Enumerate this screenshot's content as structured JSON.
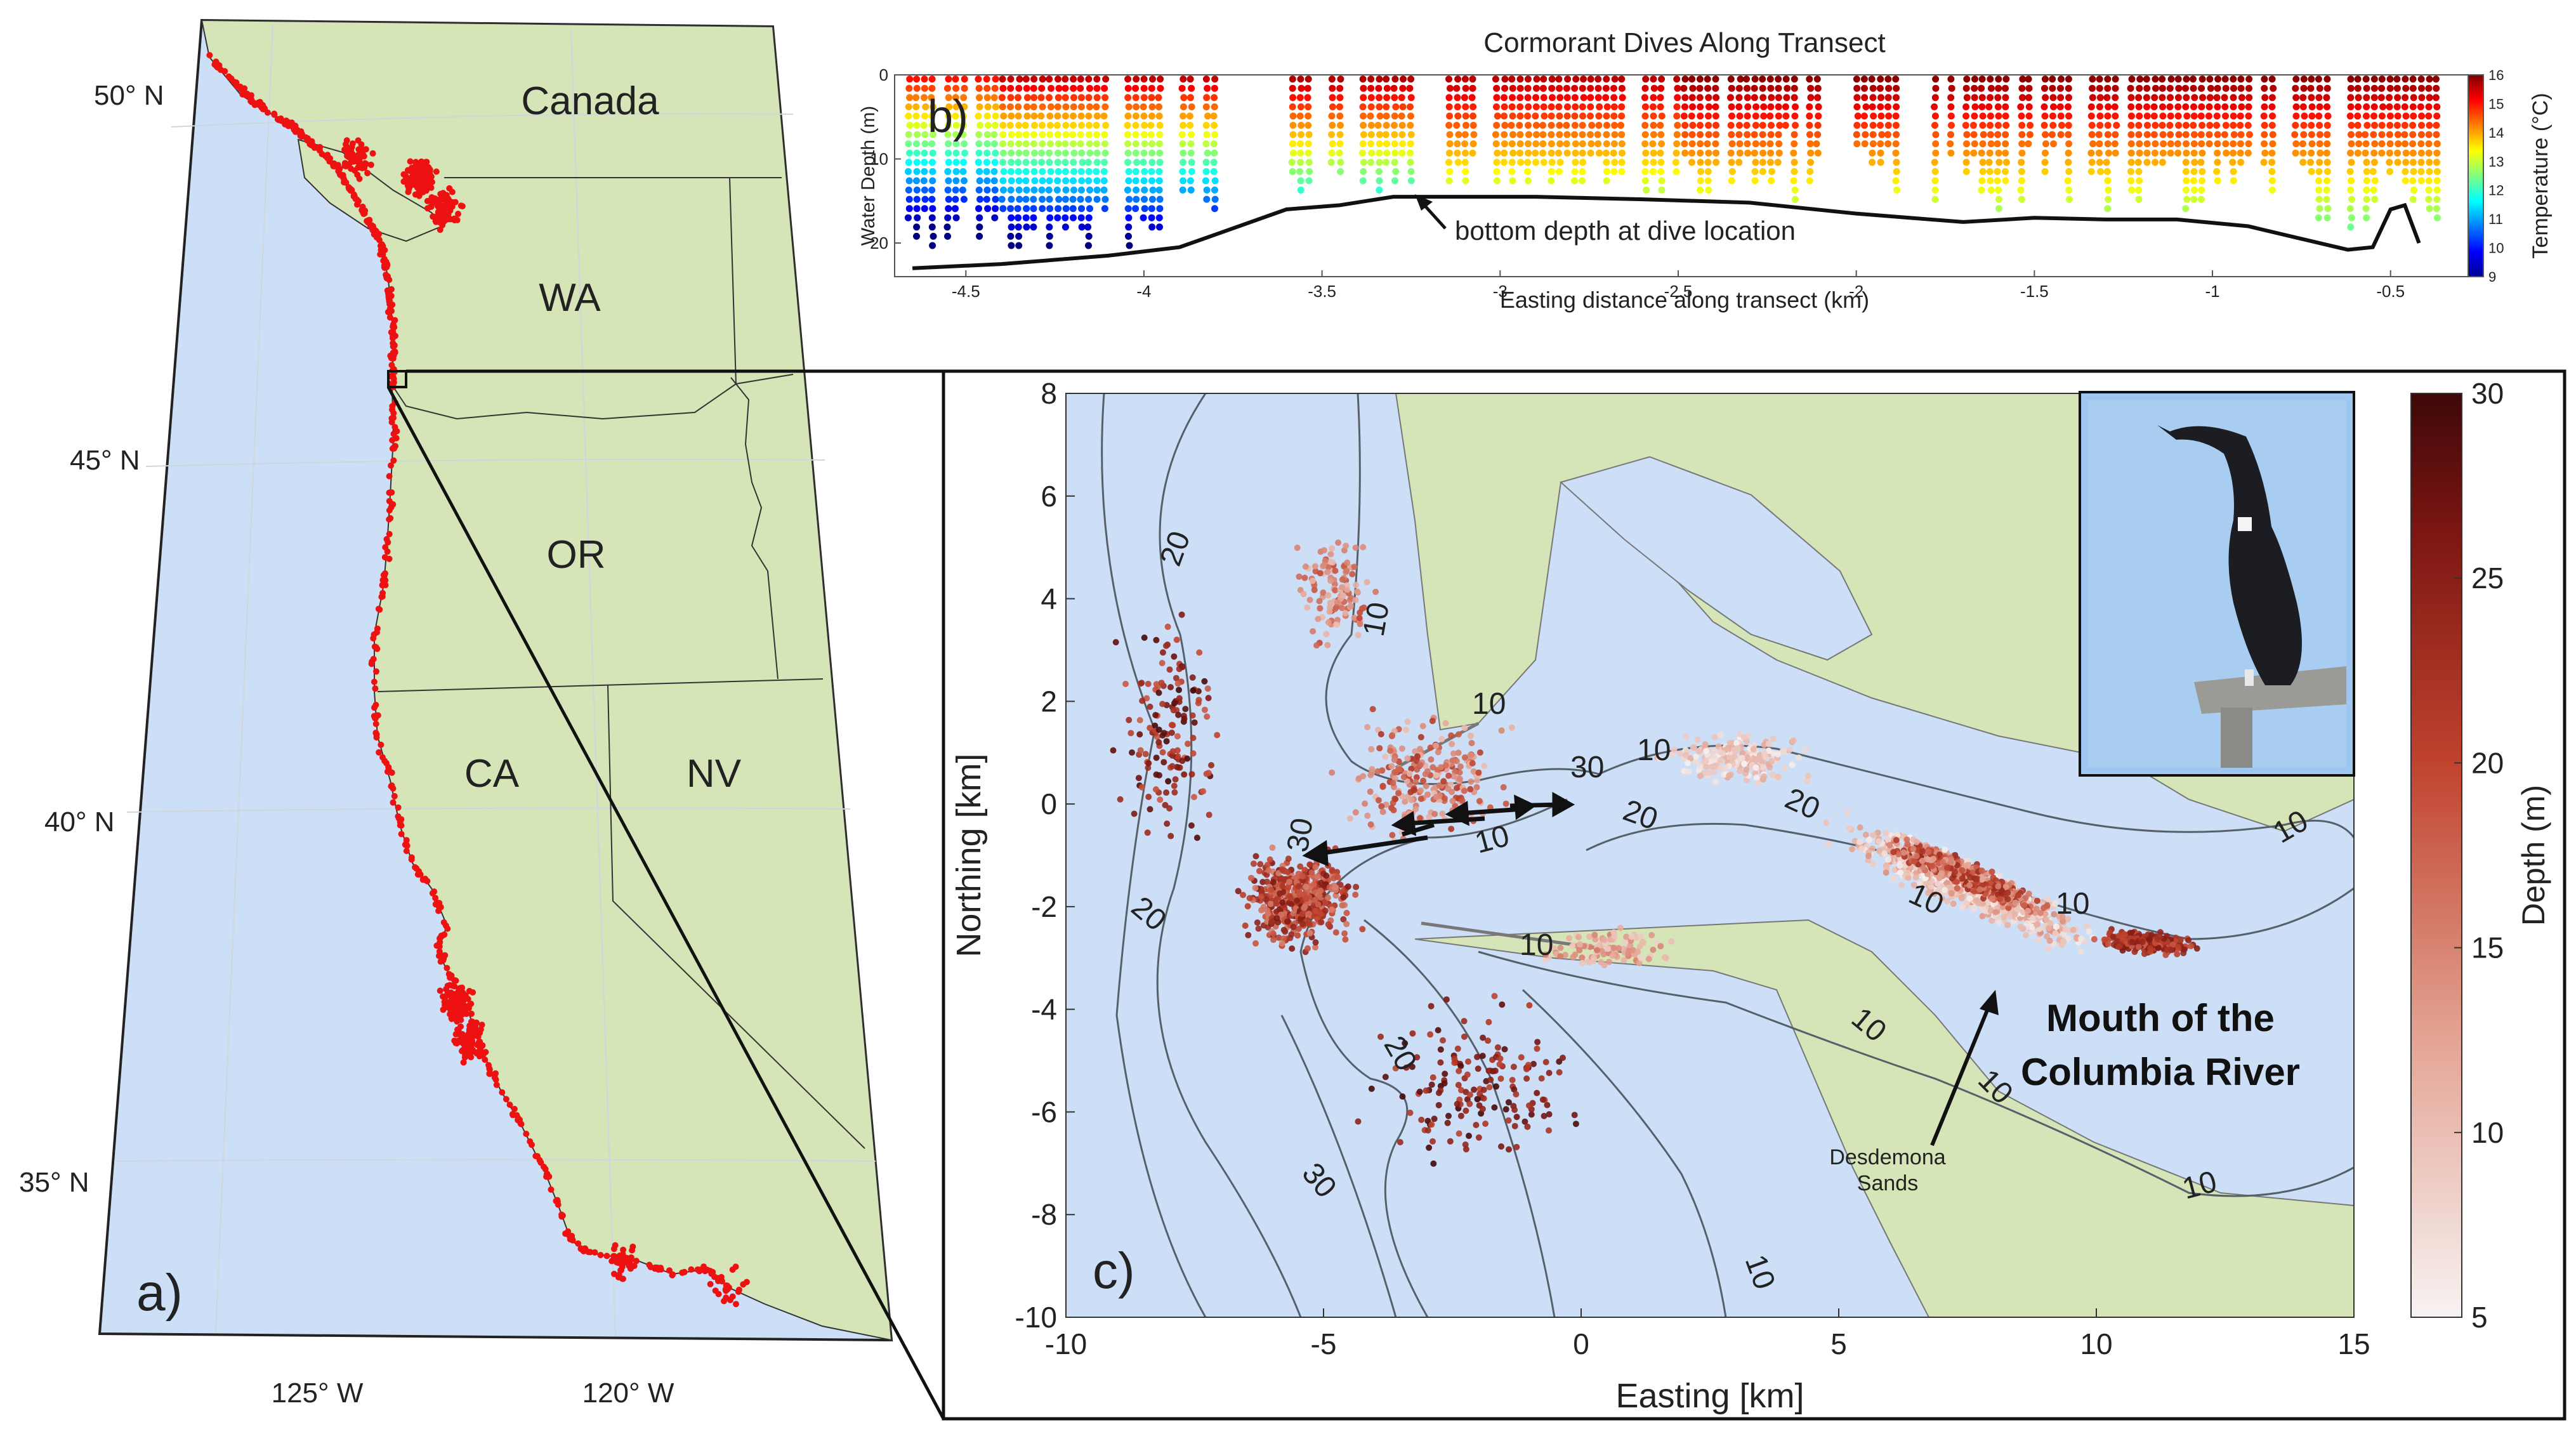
{
  "panel_a": {
    "letter": "a)",
    "lat_labels": [
      "50° N",
      "45° N",
      "40° N",
      "35° N"
    ],
    "lon_labels": [
      "125° W",
      "120° W"
    ],
    "regions": [
      "Canada",
      "WA",
      "OR",
      "CA",
      "NV"
    ]
  },
  "panel_b": {
    "letter": "b)",
    "title": "Cormorant Dives Along Transect",
    "xlabel": "Easting distance along transect (km)",
    "ylabel": "Water Depth (m)",
    "colorbar_label": "Temperature (°C)",
    "annotation": "bottom depth at dive location",
    "xticks": [
      -4.5,
      -4,
      -3.5,
      -3,
      -2.5,
      -2,
      -1.5,
      -1,
      -0.5
    ],
    "yticks": [
      0,
      10,
      20
    ],
    "colorbar_ticks": [
      9,
      10,
      11,
      12,
      13,
      14,
      15,
      16
    ],
    "xlim": [
      -4.7,
      -0.3
    ],
    "ylim": [
      0,
      24
    ],
    "cmap": "jet"
  },
  "panel_c": {
    "letter": "c)",
    "xlabel": "Easting [km]",
    "ylabel": "Northing [km]",
    "xticks": [
      -10,
      -5,
      0,
      5,
      10,
      15
    ],
    "yticks": [
      8,
      6,
      4,
      2,
      0,
      -2,
      -4,
      -6,
      -8,
      -10
    ],
    "colorbar_label": "Depth (m)",
    "colorbar_ticks": [
      5,
      10,
      15,
      20,
      25,
      30
    ],
    "title_line1": "Mouth of the",
    "title_line2": "Columbia River",
    "sand_label_line1": "Desdemona",
    "sand_label_line2": "Sands",
    "contour_labels": [
      "20",
      "10",
      "10",
      "30",
      "10",
      "20",
      "20",
      "10",
      "10",
      "30",
      "20",
      "10",
      "10",
      "10",
      "10",
      "20",
      "30",
      "10",
      "10",
      "10"
    ]
  },
  "chart_data": [
    {
      "type": "scatter",
      "title": "Cormorant Dives Along Transect",
      "xlabel": "Easting distance along transect (km)",
      "ylabel": "Water Depth (m)",
      "xlim": [
        -4.7,
        -0.3
      ],
      "ylim": [
        0,
        24
      ],
      "colorbar": {
        "label": "Temperature (°C)",
        "range": [
          9,
          16
        ]
      },
      "bottom_depth_line": {
        "x": [
          -4.65,
          -4.4,
          -4.1,
          -3.9,
          -3.8,
          -3.6,
          -3.45,
          -3.3,
          -3.1,
          -2.9,
          -2.6,
          -2.3,
          -2.0,
          -1.7,
          -1.5,
          -1.3,
          -1.1,
          -0.9,
          -0.75,
          -0.62,
          -0.55,
          -0.5,
          -0.46,
          -0.42
        ],
        "y": [
          23,
          22.5,
          21.5,
          20.5,
          19,
          16,
          15.5,
          14.5,
          14.5,
          14.5,
          14.8,
          15.2,
          16.5,
          17.5,
          17,
          17.2,
          17.2,
          18,
          19.5,
          20.8,
          20.5,
          16,
          15.5,
          20
        ]
      }
    }
  ]
}
